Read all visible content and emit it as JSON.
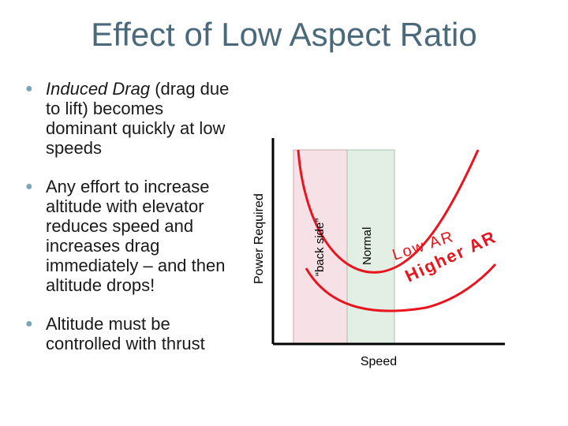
{
  "slide": {
    "title": "Effect of Low Aspect Ratio",
    "bullets": [
      {
        "em": "Induced Drag",
        "rest": " (drag due to lift) becomes dominant quickly at low speeds"
      },
      {
        "em": "",
        "rest": "Any effort to increase altitude with elevator reduces speed and increases drag immediately – and then altitude drops!"
      },
      {
        "em": "",
        "rest": "Altitude must be controlled with thrust"
      }
    ]
  },
  "diagram": {
    "y_axis_label": "Power Required",
    "x_axis_label": "Speed",
    "region_backside_label": "“back side”",
    "region_normal_label": "Normal",
    "curve_low_label": "Low AR",
    "curve_high_label": "Higher AR",
    "colors": {
      "curve": "#e8141e",
      "backside_fill": "#f6e2e6",
      "normal_fill": "#e3efe4"
    }
  }
}
